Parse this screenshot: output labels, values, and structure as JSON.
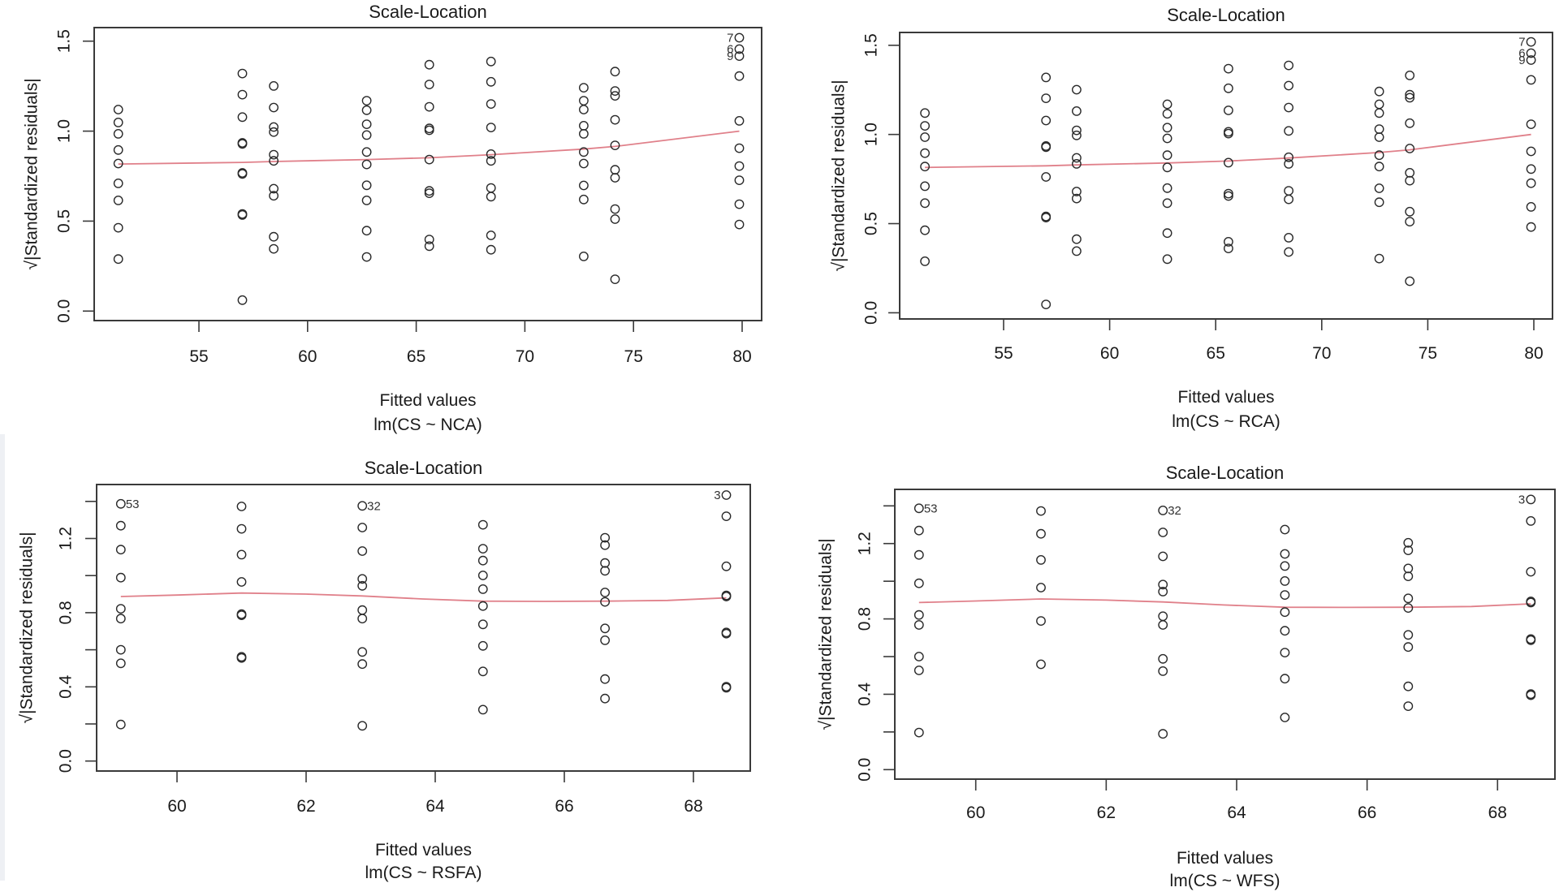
{
  "figure": {
    "description": "Four Scale-Location diagnostic plots for linear models"
  },
  "chart_data": [
    {
      "type": "scatter",
      "id": "p1",
      "title": "Scale-Location",
      "xlabel": "Fitted values",
      "subtitle": "lm(CS ~ NCA)",
      "ylabel": "√|Standardized residuals|",
      "xlim": [
        50.6,
        81.4
      ],
      "ylim": [
        -0.05,
        1.58
      ],
      "xticks": [
        55,
        60,
        65,
        70,
        75,
        80
      ],
      "xtick_labels": [
        "55",
        "60",
        "65",
        "70",
        "75",
        "80"
      ],
      "yticks": [
        0.0,
        0.5,
        1.0,
        1.5
      ],
      "ytick_labels": [
        "0.0",
        "0.5",
        "1.0",
        "1.5"
      ],
      "grid": false,
      "smooth_color": "#e0808a",
      "point_color": "#2a2a2a",
      "columns": [
        {
          "x": 51.29,
          "y": [
            1.12,
            1.048,
            0.985,
            0.895,
            0.82,
            0.71,
            0.615,
            0.463,
            0.289
          ]
        },
        {
          "x": 57.0,
          "y": [
            1.32,
            1.203,
            1.078,
            0.935,
            0.929,
            0.768,
            0.762,
            0.54,
            0.534,
            0.061
          ]
        },
        {
          "x": 58.44,
          "y": [
            1.251,
            1.131,
            1.023,
            0.995,
            0.869,
            0.835,
            0.68,
            0.641,
            0.413,
            0.346
          ]
        },
        {
          "x": 62.72,
          "y": [
            1.169,
            1.116,
            1.038,
            0.978,
            0.884,
            0.815,
            0.699,
            0.615,
            0.447,
            0.301
          ]
        },
        {
          "x": 65.6,
          "y": [
            1.369,
            1.259,
            1.135,
            1.015,
            1.005,
            0.842,
            0.668,
            0.655,
            0.398,
            0.361
          ]
        },
        {
          "x": 68.44,
          "y": [
            1.387,
            1.274,
            1.151,
            1.02,
            0.872,
            0.835,
            0.684,
            0.636,
            0.421,
            0.341
          ]
        },
        {
          "x": 72.71,
          "y": [
            1.241,
            1.169,
            1.12,
            1.03,
            0.985,
            0.884,
            0.82,
            0.698,
            0.62,
            0.304
          ]
        },
        {
          "x": 74.15,
          "y": [
            1.331,
            1.223,
            1.196,
            1.063,
            0.921,
            0.785,
            0.741,
            0.567,
            0.511,
            0.177
          ]
        },
        {
          "x": 79.87,
          "y": [
            1.519,
            1.456,
            1.417,
            1.306,
            1.057,
            0.905,
            0.806,
            0.727,
            0.594,
            0.481
          ]
        }
      ],
      "labels": [
        {
          "text": "7",
          "x": 79.87,
          "y": 1.519
        },
        {
          "text": "6",
          "x": 79.87,
          "y": 1.456
        },
        {
          "text": "9",
          "x": 79.87,
          "y": 1.417
        }
      ],
      "smooth": {
        "x": [
          51.29,
          57.0,
          58.44,
          62.72,
          65.6,
          68.44,
          72.71,
          74.15,
          79.87
        ],
        "y": [
          0.817,
          0.826,
          0.831,
          0.842,
          0.852,
          0.869,
          0.9,
          0.915,
          1.0
        ]
      }
    },
    {
      "type": "scatter",
      "id": "p2",
      "title": "Scale-Location",
      "xlabel": "Fitted values",
      "subtitle": "lm(CS ~ RCA)",
      "ylabel": "√|Standardized residuals|",
      "xlim": [
        50.6,
        81.4
      ],
      "ylim": [
        -0.05,
        1.58
      ],
      "xticks": [
        55,
        60,
        65,
        70,
        75,
        80
      ],
      "xtick_labels": [
        "55",
        "60",
        "65",
        "70",
        "75",
        "80"
      ],
      "yticks": [
        0.0,
        0.5,
        1.0,
        1.5
      ],
      "ytick_labels": [
        "0.0",
        "0.5",
        "1.0",
        "1.5"
      ],
      "grid": false,
      "smooth_color": "#e0808a",
      "point_color": "#2a2a2a",
      "columns": [
        {
          "x": 51.29,
          "y": [
            1.12,
            1.048,
            0.985,
            0.895,
            0.82,
            0.71,
            0.615,
            0.463,
            0.289
          ]
        },
        {
          "x": 57.0,
          "y": [
            1.32,
            1.203,
            1.078,
            0.935,
            0.929,
            0.762,
            0.54,
            0.534,
            0.047
          ]
        },
        {
          "x": 58.44,
          "y": [
            1.251,
            1.131,
            1.023,
            0.995,
            0.869,
            0.835,
            0.68,
            0.641,
            0.413,
            0.346
          ]
        },
        {
          "x": 62.72,
          "y": [
            1.169,
            1.116,
            1.038,
            0.978,
            0.884,
            0.815,
            0.699,
            0.615,
            0.447,
            0.301
          ]
        },
        {
          "x": 65.6,
          "y": [
            1.369,
            1.259,
            1.135,
            1.015,
            1.005,
            0.842,
            0.668,
            0.655,
            0.398,
            0.361
          ]
        },
        {
          "x": 68.44,
          "y": [
            1.387,
            1.274,
            1.151,
            1.02,
            0.872,
            0.835,
            0.684,
            0.636,
            0.421,
            0.341
          ]
        },
        {
          "x": 72.71,
          "y": [
            1.241,
            1.169,
            1.12,
            1.03,
            0.985,
            0.884,
            0.82,
            0.698,
            0.62,
            0.304
          ]
        },
        {
          "x": 74.15,
          "y": [
            1.331,
            1.223,
            1.206,
            1.063,
            0.921,
            0.785,
            0.741,
            0.567,
            0.511,
            0.177
          ]
        },
        {
          "x": 79.87,
          "y": [
            1.519,
            1.456,
            1.417,
            1.306,
            1.057,
            0.905,
            0.806,
            0.727,
            0.594,
            0.481
          ]
        }
      ],
      "labels": [
        {
          "text": "7",
          "x": 79.87,
          "y": 1.519
        },
        {
          "text": "6",
          "x": 79.87,
          "y": 1.456
        },
        {
          "text": "9",
          "x": 79.87,
          "y": 1.417
        }
      ],
      "smooth": {
        "x": [
          51.29,
          57.0,
          58.44,
          62.72,
          65.6,
          68.44,
          72.71,
          74.15,
          79.87
        ],
        "y": [
          0.815,
          0.824,
          0.829,
          0.84,
          0.851,
          0.868,
          0.899,
          0.914,
          1.0
        ]
      }
    },
    {
      "type": "scatter",
      "id": "p3",
      "title": "Scale-Location",
      "xlabel": "Fitted values",
      "subtitle": "lm(CS ~ RSFA)",
      "ylabel": "√|Standardized residuals|",
      "xlim": [
        58.75,
        68.9
      ],
      "ylim": [
        -0.05,
        1.5
      ],
      "xticks": [
        60,
        62,
        64,
        66,
        68
      ],
      "xtick_labels": [
        "60",
        "62",
        "64",
        "66",
        "68"
      ],
      "yticks": [
        0.0,
        0.2,
        0.4,
        0.6,
        0.8,
        1.0,
        1.2,
        1.4
      ],
      "ytick_labels": [
        "0.0",
        "",
        "0.4",
        "",
        "0.8",
        "",
        "1.2",
        ""
      ],
      "grid": false,
      "smooth_color": "#e0808a",
      "point_color": "#2a2a2a",
      "columns": [
        {
          "x": 59.13,
          "y": [
            1.387,
            1.269,
            1.14,
            0.989,
            0.821,
            0.768,
            0.6,
            0.527,
            0.197
          ]
        },
        {
          "x": 61.0,
          "y": [
            1.373,
            1.252,
            1.113,
            0.966,
            0.792,
            0.786,
            0.562,
            0.556
          ]
        },
        {
          "x": 62.87,
          "y": [
            1.376,
            1.259,
            1.132,
            0.982,
            0.945,
            0.814,
            0.768,
            0.588,
            0.523,
            0.19
          ]
        },
        {
          "x": 64.74,
          "y": [
            1.274,
            1.145,
            1.081,
            1.001,
            0.927,
            0.836,
            0.737,
            0.621,
            0.483,
            0.277
          ]
        },
        {
          "x": 66.63,
          "y": [
            1.204,
            1.164,
            1.068,
            1.026,
            0.909,
            0.858,
            0.715,
            0.651,
            0.442,
            0.337
          ]
        },
        {
          "x": 68.51,
          "y": [
            1.434,
            1.32,
            1.05,
            0.893,
            0.887,
            0.693,
            0.687,
            0.401,
            0.395
          ]
        }
      ],
      "labels": [
        {
          "text": "53",
          "x": 59.13,
          "y": 1.387,
          "side": "right"
        },
        {
          "text": "32",
          "x": 62.87,
          "y": 1.376,
          "side": "right"
        },
        {
          "text": "3",
          "x": 68.51,
          "y": 1.434,
          "side": "left"
        }
      ],
      "smooth": {
        "x": [
          59.13,
          60.0,
          61.0,
          62.0,
          62.87,
          63.8,
          64.74,
          65.7,
          66.63,
          67.6,
          68.51
        ],
        "y": [
          0.887,
          0.895,
          0.906,
          0.9,
          0.89,
          0.874,
          0.862,
          0.861,
          0.862,
          0.866,
          0.88
        ]
      }
    },
    {
      "type": "scatter",
      "id": "p4",
      "title": "Scale-Location",
      "xlabel": "Fitted values",
      "subtitle": "lm(CS ~ WFS)",
      "ylabel": "√|Standardized residuals|",
      "xlim": [
        58.75,
        68.9
      ],
      "ylim": [
        -0.05,
        1.5
      ],
      "xticks": [
        60,
        62,
        64,
        66,
        68
      ],
      "xtick_labels": [
        "60",
        "62",
        "64",
        "66",
        "68"
      ],
      "yticks": [
        0.0,
        0.2,
        0.4,
        0.6,
        0.8,
        1.0,
        1.2,
        1.4
      ],
      "ytick_labels": [
        "0.0",
        "",
        "0.4",
        "",
        "0.8",
        "",
        "1.2",
        ""
      ],
      "grid": false,
      "smooth_color": "#e0808a",
      "point_color": "#2a2a2a",
      "columns": [
        {
          "x": 59.13,
          "y": [
            1.387,
            1.269,
            1.14,
            0.989,
            0.821,
            0.768,
            0.6,
            0.527,
            0.197
          ]
        },
        {
          "x": 61.0,
          "y": [
            1.373,
            1.252,
            1.113,
            0.966,
            0.789,
            0.559
          ]
        },
        {
          "x": 62.87,
          "y": [
            1.376,
            1.259,
            1.132,
            0.982,
            0.945,
            0.814,
            0.768,
            0.588,
            0.523,
            0.19
          ]
        },
        {
          "x": 64.74,
          "y": [
            1.274,
            1.145,
            1.081,
            1.001,
            0.927,
            0.836,
            0.737,
            0.621,
            0.483,
            0.277
          ]
        },
        {
          "x": 66.63,
          "y": [
            1.204,
            1.164,
            1.068,
            1.026,
            0.909,
            0.858,
            0.715,
            0.651,
            0.442,
            0.337
          ]
        },
        {
          "x": 68.51,
          "y": [
            1.434,
            1.32,
            1.05,
            0.893,
            0.887,
            0.693,
            0.687,
            0.401,
            0.395
          ]
        }
      ],
      "labels": [
        {
          "text": "53",
          "x": 59.13,
          "y": 1.387,
          "side": "right"
        },
        {
          "text": "32",
          "x": 62.87,
          "y": 1.376,
          "side": "right"
        },
        {
          "text": "3",
          "x": 68.51,
          "y": 1.434,
          "side": "left"
        }
      ],
      "smooth": {
        "x": [
          59.13,
          60.0,
          61.0,
          62.0,
          62.87,
          63.8,
          64.74,
          65.7,
          66.63,
          67.6,
          68.51
        ],
        "y": [
          0.887,
          0.895,
          0.906,
          0.9,
          0.89,
          0.874,
          0.862,
          0.861,
          0.862,
          0.866,
          0.88
        ]
      }
    }
  ]
}
